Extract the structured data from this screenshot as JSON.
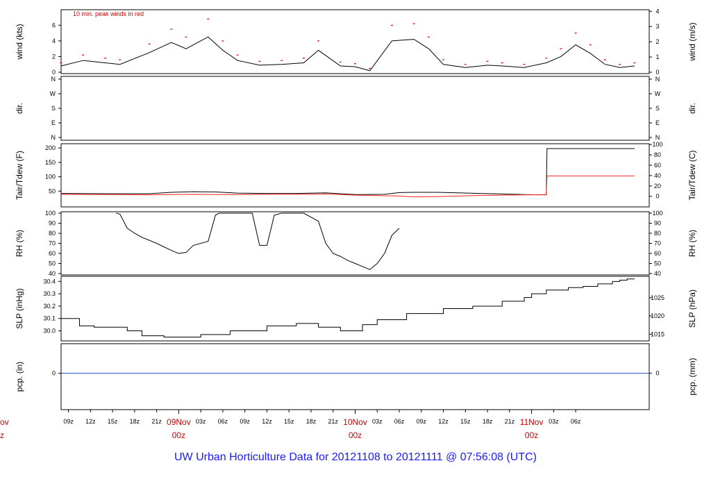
{
  "title": "UW Urban Horticulture Data for 20121108  to  20121111 @ 07:56:08  (UTC)",
  "chart_data": [
    {
      "type": "line",
      "panel": "wind",
      "ylabel_left": "wind (kts)",
      "ylabel_right": "wind (m/s)",
      "annotation": "10 min. peak winds in red",
      "ylim": [
        0,
        7.8
      ],
      "yticks_left": [
        "0",
        "2",
        "4",
        "6"
      ],
      "yticks_right": [
        "0",
        "1",
        "2",
        "3",
        "4"
      ],
      "series": [
        {
          "values_x": [
            0,
            3,
            6,
            8,
            12,
            15,
            17,
            20,
            22,
            24,
            27,
            30,
            33,
            35,
            38,
            40,
            42,
            45,
            48,
            50,
            52,
            55,
            58,
            60,
            63,
            66,
            68,
            70,
            72,
            74,
            76,
            78
          ],
          "values_y": [
            0.8,
            1.5,
            1.2,
            1.0,
            2.5,
            3.8,
            3.0,
            4.5,
            2.8,
            1.5,
            0.9,
            1.0,
            1.2,
            2.8,
            0.8,
            0.7,
            0.2,
            4.0,
            4.2,
            3.0,
            1.0,
            0.6,
            0.9,
            0.8,
            0.6,
            1.2,
            2.0,
            3.5,
            2.4,
            1.0,
            0.6,
            0.8
          ]
        },
        {
          "values_x": [
            0,
            3,
            6,
            8,
            12,
            15,
            17,
            20,
            22,
            24,
            27,
            30,
            33,
            35,
            38,
            40,
            42,
            45,
            48,
            50,
            52,
            55,
            58,
            60,
            63,
            66,
            68,
            70,
            72,
            74,
            76,
            78
          ],
          "values_y": [
            1.2,
            2.2,
            1.8,
            1.6,
            3.6,
            5.5,
            4.5,
            6.8,
            4.0,
            2.2,
            1.4,
            1.5,
            1.8,
            4.0,
            1.3,
            1.1,
            0.5,
            6.0,
            6.2,
            4.5,
            1.6,
            1.0,
            1.4,
            1.2,
            1.0,
            1.8,
            3.0,
            5.0,
            3.5,
            1.6,
            1.0,
            1.2
          ]
        }
      ]
    },
    {
      "type": "scatter",
      "panel": "dir",
      "ylabel_left": "dir.",
      "ylabel_right": "dir.",
      "yticks": [
        "N",
        "W",
        "S",
        "E",
        "N"
      ]
    },
    {
      "type": "line",
      "panel": "temp",
      "ylabel_left": "Tair/Tdew (F)",
      "ylabel_right": "Tair/Tdew (C)",
      "ylim": [
        0,
        210
      ],
      "yticks_left": [
        "50",
        "100",
        "150",
        "200"
      ],
      "yticks_right": [
        "0",
        "20",
        "40",
        "60",
        "80",
        "100"
      ],
      "series": [
        {
          "values_x": [
            0,
            6,
            12,
            15,
            18,
            21,
            24,
            28,
            32,
            36,
            40,
            44,
            46,
            48,
            51,
            54,
            57,
            60,
            63,
            65,
            66,
            66.1,
            78
          ],
          "values_y": [
            42,
            41,
            41,
            46,
            48,
            47,
            43,
            42,
            42,
            44,
            38,
            39,
            45,
            46,
            46,
            44,
            42,
            40,
            38,
            37,
            38,
            198,
            198
          ]
        },
        {
          "values_x": [
            0,
            6,
            12,
            15,
            18,
            21,
            24,
            28,
            32,
            36,
            40,
            44,
            46,
            48,
            51,
            54,
            57,
            60,
            63,
            65,
            66,
            66.1,
            78
          ],
          "values_y": [
            39,
            38,
            37,
            38,
            39,
            38,
            38,
            39,
            39,
            40,
            36,
            34,
            33,
            30,
            31,
            33,
            35,
            36,
            37,
            37,
            37,
            103,
            103
          ]
        }
      ]
    },
    {
      "type": "line",
      "panel": "rh",
      "ylabel_left": "RH (%)",
      "ylabel_right": "RH (%)",
      "ylim": [
        40,
        100
      ],
      "yticks": [
        "40",
        "50",
        "60",
        "70",
        "80",
        "90",
        "100"
      ],
      "values_x": [
        7.5,
        8,
        9,
        10,
        11,
        13,
        15,
        16,
        17,
        18,
        20,
        20.5,
        21,
        21.5,
        22,
        24,
        25,
        26,
        27,
        28,
        29,
        30,
        31,
        33,
        35,
        36,
        37,
        38,
        39,
        40,
        42,
        43,
        44,
        45,
        46
      ],
      "values_y": [
        100,
        99,
        85,
        80,
        76,
        70,
        63,
        60,
        61,
        68,
        72,
        85,
        98,
        100,
        100,
        100,
        100,
        100,
        68,
        68,
        98,
        100,
        100,
        100,
        92,
        70,
        60,
        57,
        53,
        50,
        44,
        50,
        60,
        78,
        85
      ]
    },
    {
      "type": "line",
      "panel": "slp",
      "ylabel_left": "SLP (inHg)",
      "ylabel_right": "SLP (hPa)",
      "ylim": [
        29.93,
        30.43
      ],
      "yticks_left": [
        "30.0",
        "30.1",
        "30.2",
        "30.3",
        "30.4"
      ],
      "yticks_right": [
        "1015",
        "1020",
        "1025"
      ],
      "values_x": [
        0,
        2.5,
        4.5,
        9,
        11,
        14,
        19,
        23,
        28,
        32,
        35,
        38,
        41,
        43,
        47,
        52,
        56,
        60,
        63,
        64,
        66,
        69,
        71,
        73,
        75,
        76,
        77,
        78
      ],
      "values_y": [
        30.1,
        30.04,
        30.03,
        30.0,
        29.96,
        29.95,
        29.97,
        30.0,
        30.04,
        30.06,
        30.03,
        30.0,
        30.05,
        30.09,
        30.14,
        30.18,
        30.2,
        30.24,
        30.27,
        30.3,
        30.33,
        30.35,
        30.36,
        30.38,
        30.4,
        30.41,
        30.42,
        30.42
      ]
    },
    {
      "type": "line",
      "panel": "pcp",
      "ylabel_left": "pcp. (in)",
      "ylabel_right": "pcp. (mm)",
      "yticks_left": [
        "0"
      ],
      "yticks_right": [
        "0"
      ],
      "values": [
        0
      ]
    }
  ],
  "xaxis": {
    "hour_ticks": [
      "09z",
      "12z",
      "15z",
      "18z",
      "21z",
      "03z",
      "06z",
      "09z",
      "12z",
      "15z",
      "18z",
      "21z",
      "03z",
      "06z",
      "09z",
      "12z",
      "15z",
      "18z",
      "21z",
      "03z",
      "06z"
    ],
    "day_labels": [
      {
        "line1": "09Nov",
        "line2": "00z"
      },
      {
        "line1": "10Nov",
        "line2": "00z"
      },
      {
        "line1": "11Nov",
        "line2": "00z"
      }
    ],
    "clipped_left": {
      "line1": "ov",
      "line2": "z"
    }
  }
}
